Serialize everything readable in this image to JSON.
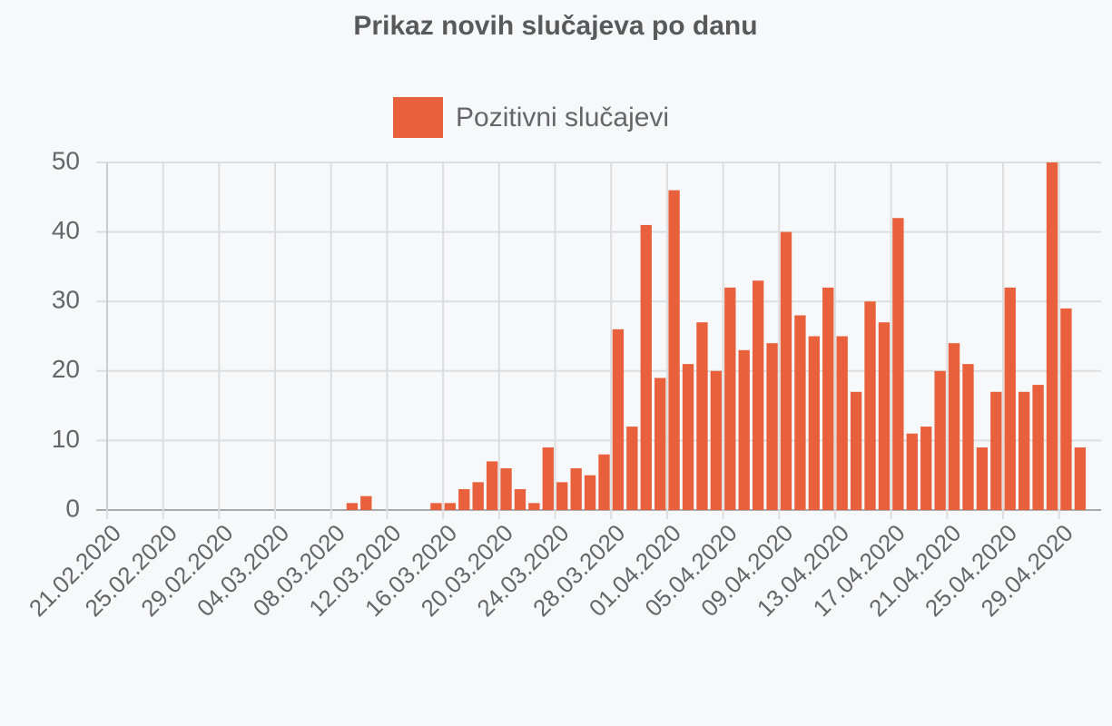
{
  "chart_data": {
    "type": "bar",
    "title": "Prikaz novih slučajeva po danu",
    "legend": "top",
    "series": [
      {
        "name": "Pozitivni slučajevi",
        "color": "#e8603c",
        "values": [
          0,
          0,
          0,
          0,
          0,
          0,
          0,
          0,
          0,
          0,
          0,
          0,
          0,
          0,
          0,
          0,
          0,
          1,
          2,
          0,
          0,
          0,
          0,
          1,
          1,
          3,
          4,
          7,
          6,
          3,
          1,
          9,
          4,
          6,
          5,
          8,
          26,
          12,
          41,
          19,
          46,
          21,
          27,
          20,
          32,
          23,
          33,
          24,
          40,
          28,
          25,
          32,
          25,
          17,
          30,
          27,
          42,
          11,
          12,
          20,
          24,
          21,
          9,
          17,
          32,
          17,
          18,
          50,
          29,
          9,
          0
        ]
      }
    ],
    "categories": [
      "21.02.2020",
      null,
      null,
      null,
      "25.02.2020",
      null,
      null,
      null,
      "29.02.2020",
      null,
      null,
      null,
      "04.03.2020",
      null,
      null,
      null,
      "08.03.2020",
      null,
      null,
      null,
      "12.03.2020",
      null,
      null,
      null,
      "16.03.2020",
      null,
      null,
      null,
      "20.03.2020",
      null,
      null,
      null,
      "24.03.2020",
      null,
      null,
      null,
      "28.03.2020",
      null,
      null,
      null,
      "01.04.2020",
      null,
      null,
      null,
      "05.04.2020",
      null,
      null,
      null,
      "09.04.2020",
      null,
      null,
      null,
      "13.04.2020",
      null,
      null,
      null,
      "17.04.2020",
      null,
      null,
      null,
      "21.04.2020",
      null,
      null,
      null,
      "25.04.2020",
      null,
      null,
      null,
      "29.04.2020",
      null,
      null
    ],
    "ylim": [
      0,
      50
    ],
    "yticks": [
      0,
      10,
      20,
      30,
      40,
      50
    ],
    "grid": true
  }
}
